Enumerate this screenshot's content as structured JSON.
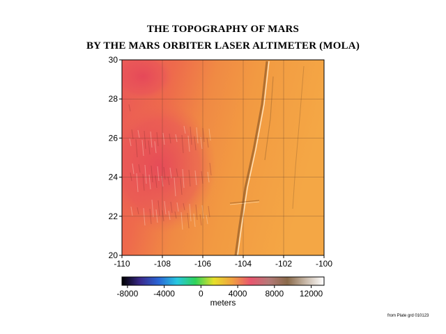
{
  "title_line1": "THE TOPOGRAPHY OF MARS",
  "title_line2": "BY THE MARS ORBITER LASER ALTIMETER (MOLA)",
  "map": {
    "lon_range": [
      -110,
      -100
    ],
    "lat_range": [
      20,
      30
    ],
    "x_ticks": [
      "-110",
      "-108",
      "-106",
      "-104",
      "-102",
      "-100"
    ],
    "y_ticks": [
      "20",
      "22",
      "24",
      "26",
      "28",
      "30"
    ],
    "x_tick_values": [
      -110,
      -108,
      -106,
      -104,
      -102,
      -100
    ],
    "y_tick_values": [
      20,
      22,
      24,
      26,
      28,
      30
    ],
    "grid": true
  },
  "colorbar": {
    "tick_labels": [
      "-8000",
      "-4000",
      "0",
      "4000",
      "8000",
      "12000"
    ],
    "tick_values": [
      -8000,
      -4000,
      0,
      4000,
      8000,
      12000
    ],
    "range": [
      -8600,
      13400
    ],
    "label": "meters",
    "colors": [
      "#000000",
      "#3a2a8c",
      "#2a66d6",
      "#27c7e0",
      "#2fd35a",
      "#e6e02a",
      "#f0a040",
      "#e8566e",
      "#b57a78",
      "#8a6a4a",
      "#c8b8a8",
      "#ffffff"
    ]
  },
  "source_note": "from Plate grd 010123"
}
